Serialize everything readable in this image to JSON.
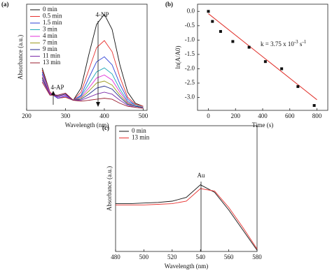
{
  "chart_data": [
    {
      "type": "line",
      "label": "(a)",
      "xlabel": "Wavelength (nm)",
      "ylabel": "Absorbance (a.u.)",
      "xlim": [
        200,
        510
      ],
      "xticks": [
        200,
        300,
        400,
        500
      ],
      "ylim": [
        0,
        1.05
      ],
      "annotations": [
        "4-NP",
        "4-AP"
      ],
      "x": [
        240,
        260,
        280,
        300,
        320,
        340,
        360,
        380,
        400,
        420,
        440,
        460,
        480,
        500
      ],
      "series": [
        {
          "name": "0 min",
          "color": "#111111",
          "values": [
            0.42,
            0.18,
            0.12,
            0.13,
            0.1,
            0.22,
            0.55,
            0.85,
            0.95,
            0.8,
            0.45,
            0.18,
            0.07,
            0.04
          ]
        },
        {
          "name": "0.5 min",
          "color": "#e8312f",
          "values": [
            0.4,
            0.18,
            0.12,
            0.13,
            0.1,
            0.18,
            0.4,
            0.62,
            0.69,
            0.58,
            0.33,
            0.13,
            0.06,
            0.04
          ]
        },
        {
          "name": "1.5 min",
          "color": "#2b3fd6",
          "values": [
            0.38,
            0.17,
            0.12,
            0.14,
            0.1,
            0.15,
            0.32,
            0.48,
            0.53,
            0.45,
            0.26,
            0.11,
            0.05,
            0.03
          ]
        },
        {
          "name": "3 min",
          "color": "#1fa8b8",
          "values": [
            0.36,
            0.17,
            0.13,
            0.15,
            0.1,
            0.14,
            0.26,
            0.38,
            0.42,
            0.36,
            0.21,
            0.09,
            0.05,
            0.03
          ]
        },
        {
          "name": "4 min",
          "color": "#e030d8",
          "values": [
            0.35,
            0.17,
            0.13,
            0.15,
            0.1,
            0.13,
            0.22,
            0.32,
            0.35,
            0.3,
            0.18,
            0.08,
            0.04,
            0.03
          ]
        },
        {
          "name": "7 min",
          "color": "#9a9a1e",
          "values": [
            0.33,
            0.16,
            0.14,
            0.16,
            0.1,
            0.12,
            0.19,
            0.27,
            0.29,
            0.25,
            0.15,
            0.07,
            0.04,
            0.03
          ]
        },
        {
          "name": "9 min",
          "color": "#1f2a8c",
          "values": [
            0.32,
            0.16,
            0.14,
            0.16,
            0.1,
            0.11,
            0.16,
            0.22,
            0.24,
            0.21,
            0.13,
            0.06,
            0.04,
            0.03
          ]
        },
        {
          "name": "11 min",
          "color": "#7a2aa8",
          "values": [
            0.3,
            0.16,
            0.15,
            0.17,
            0.1,
            0.1,
            0.13,
            0.16,
            0.18,
            0.16,
            0.1,
            0.05,
            0.03,
            0.02
          ]
        },
        {
          "name": "13 min",
          "color": "#9a1e2e",
          "values": [
            0.28,
            0.15,
            0.15,
            0.17,
            0.1,
            0.09,
            0.1,
            0.11,
            0.12,
            0.11,
            0.07,
            0.04,
            0.03,
            0.02
          ]
        }
      ]
    },
    {
      "type": "scatter",
      "label": "(b)",
      "xlabel": "Time (s)",
      "ylabel": "ln(A/A0)",
      "annotation": {
        "base": "k = 3.75 x 10",
        "exp1": "-3",
        "mid": " s",
        "exp2": "-1"
      },
      "xlim": [
        -80,
        880
      ],
      "xticks": [
        0,
        200,
        400,
        600,
        800
      ],
      "ylim": [
        -3.45,
        0.25
      ],
      "yticks": [
        {
          "value": 0,
          "label": "0.0"
        },
        -0.5,
        {
          "value": -1,
          "label": "-1.0"
        },
        -1.5,
        {
          "value": -2,
          "label": "-2.0"
        },
        -2.5,
        {
          "value": -3,
          "label": "-3.0"
        }
      ],
      "points": {
        "color": "#111111",
        "x": [
          0,
          30,
          90,
          180,
          300,
          420,
          540,
          660,
          780
        ],
        "values": [
          0,
          -0.35,
          -0.7,
          -1.05,
          -1.25,
          -1.75,
          -2.0,
          -2.62,
          -3.28
        ]
      },
      "fit": {
        "color": "#e0302a",
        "x": [
          0,
          800
        ],
        "values": [
          -0.08,
          -3.08
        ]
      }
    },
    {
      "type": "line",
      "label": "(c)",
      "xlabel": "Wavelength (nm)",
      "ylabel": "Absorbance (a.u.)",
      "xlim": [
        480,
        580
      ],
      "xticks": [
        480,
        500,
        520,
        540,
        560,
        580
      ],
      "ylim": [
        0,
        1
      ],
      "annotations": [
        "Au"
      ],
      "x": [
        480,
        490,
        500,
        510,
        520,
        530,
        540,
        550,
        560,
        570,
        580
      ],
      "series": [
        {
          "name": "0 min",
          "color": "#111111",
          "values": [
            0.38,
            0.38,
            0.385,
            0.39,
            0.4,
            0.43,
            0.53,
            0.47,
            0.33,
            0.17,
            0.01
          ]
        },
        {
          "name": "13 min",
          "color": "#e8312f",
          "values": [
            0.37,
            0.37,
            0.37,
            0.375,
            0.38,
            0.4,
            0.5,
            0.48,
            0.35,
            0.19,
            0.02
          ]
        }
      ]
    }
  ]
}
